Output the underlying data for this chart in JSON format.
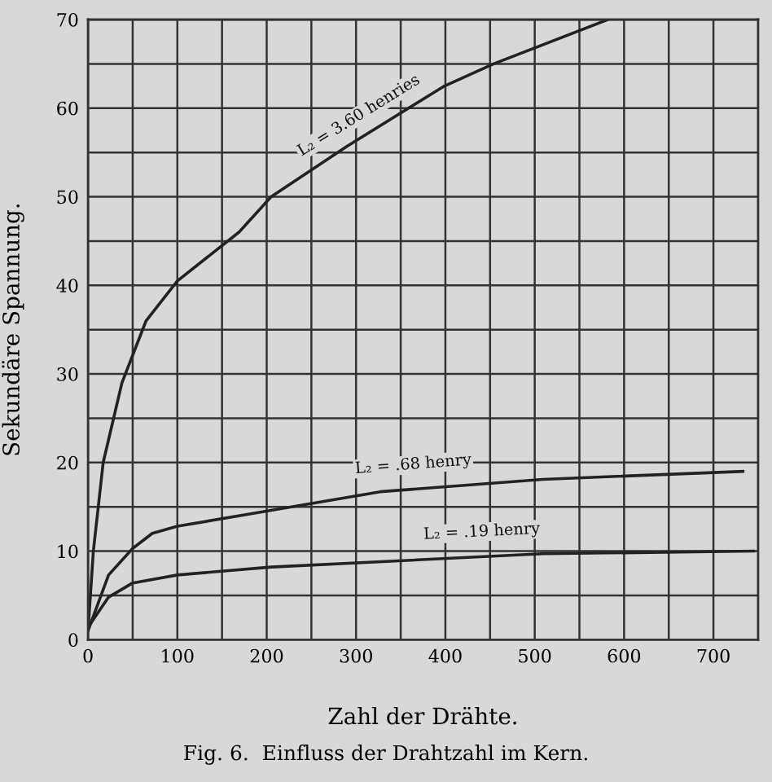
{
  "chart_data": {
    "type": "line",
    "xlabel": "Zahl der Drähte.",
    "ylabel": "Sekundäre Spannung.",
    "xlim": [
      0,
      750
    ],
    "ylim": [
      0,
      70
    ],
    "xticks": [
      0,
      {
        "value": 50,
        "label": null
      },
      100,
      {
        "value": 150,
        "label": null
      },
      200,
      {
        "value": 250,
        "label": null
      },
      300,
      {
        "value": 350,
        "label": null
      },
      400,
      {
        "value": 450,
        "label": null
      },
      500,
      {
        "value": 550,
        "label": null
      },
      600,
      {
        "value": 650,
        "label": null
      },
      700
    ],
    "yticks": [
      0,
      {
        "value": 5,
        "label": null
      },
      10,
      {
        "value": 15,
        "label": null
      },
      20,
      {
        "value": 25,
        "label": null
      },
      30,
      {
        "value": 35,
        "label": null
      },
      40,
      {
        "value": 45,
        "label": null
      },
      50,
      {
        "value": 55,
        "label": null
      },
      60,
      {
        "value": 65,
        "label": null
      },
      70
    ],
    "grid": true,
    "legend": false,
    "marker": "none",
    "line_style": "solid",
    "series": [
      {
        "color": "#222222",
        "x": [
          0,
          6,
          17,
          38,
          65,
          100,
          169,
          205,
          290,
          399,
          454,
          582
        ],
        "values": [
          1,
          10,
          20,
          29,
          36,
          40.5,
          46,
          50,
          55.7,
          62.5,
          65,
          70
        ]
      },
      {
        "color": "#222222",
        "x": [
          0,
          23,
          50,
          72,
          100,
          205,
          327,
          509,
          733
        ],
        "values": [
          1,
          7.3,
          10.3,
          12,
          12.8,
          14.6,
          16.7,
          18.1,
          19
        ]
      },
      {
        "color": "#222222",
        "x": [
          0,
          23,
          50,
          100,
          205,
          509,
          745
        ],
        "values": [
          1.4,
          4.8,
          6.4,
          7.3,
          8.2,
          9.7,
          10
        ]
      }
    ],
    "annotations": [
      {
        "text": "L₂ = 3.60 henries",
        "x": 317,
        "y": 56.9
      },
      {
        "text": "L₂ = .68 henry",
        "x": 366,
        "y": 17.1
      },
      {
        "text": "L₂ = .19 henry",
        "x": 442,
        "y": 9.5
      },
      "Fig. 6.  Einfluss der Drahtzahl im Kern."
    ]
  }
}
